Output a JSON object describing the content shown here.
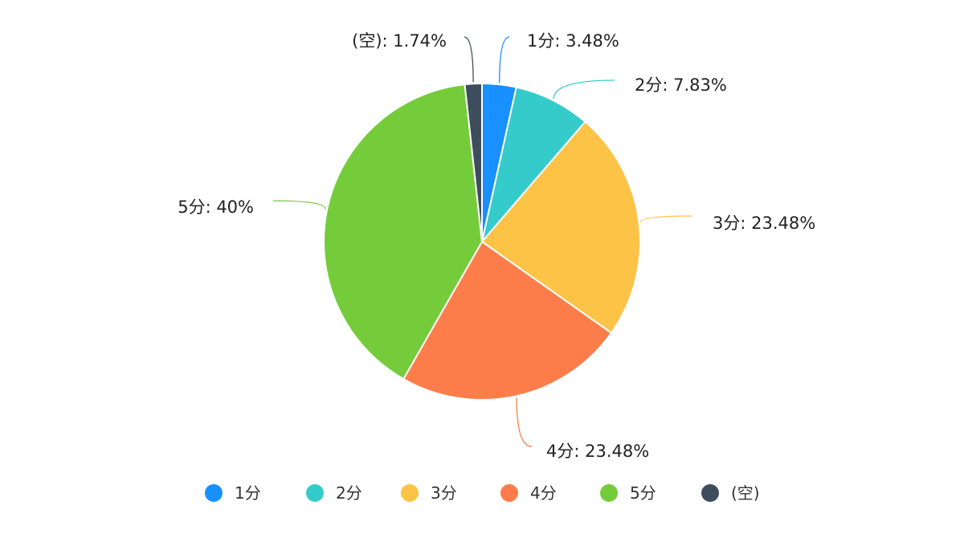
{
  "chart_data": {
    "type": "pie",
    "title": "",
    "slices": [
      {
        "name": "1分",
        "label": "1分: 3.48%",
        "value": 3.48,
        "color": "#1890ff"
      },
      {
        "name": "2分",
        "label": "2分: 7.83%",
        "value": 7.83,
        "color": "#36cbcb"
      },
      {
        "name": "3分",
        "label": "3分: 23.48%",
        "value": 23.48,
        "color": "#fcc347"
      },
      {
        "name": "4分",
        "label": "4分: 23.48%",
        "value": 23.48,
        "color": "#fd7d4a"
      },
      {
        "name": "5分",
        "label": "5分: 40%",
        "value": 40,
        "color": "#75cc3b"
      },
      {
        "name": "(空)",
        "label": "(空): 1.74%",
        "value": 1.74,
        "color": "#3d4d5c"
      }
    ],
    "legend": {
      "position": "bottom",
      "items": [
        "1分",
        "2分",
        "3分",
        "4分",
        "5分",
        "(空)"
      ]
    }
  }
}
